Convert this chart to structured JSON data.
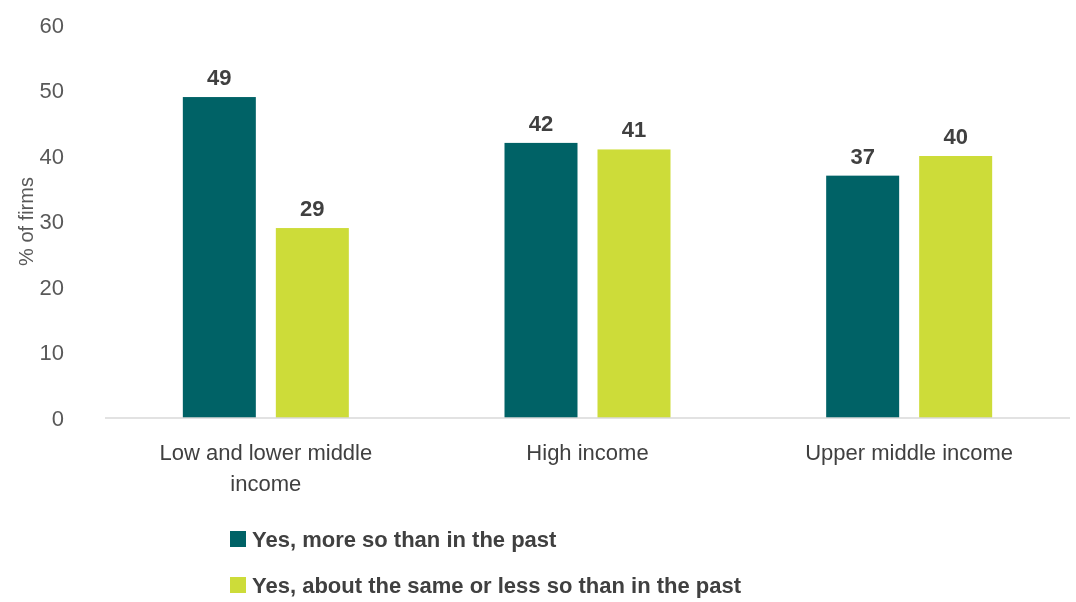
{
  "chart_data": {
    "type": "bar",
    "ylabel": "% of firms",
    "categories": [
      "Low and lower middle income",
      "High income",
      "Upper middle income"
    ],
    "series": [
      {
        "name": "Yes, more so than in the past",
        "color": "#006266",
        "values": [
          49,
          42,
          37
        ]
      },
      {
        "name": "Yes, about the same or less so than in the past",
        "color": "#cddc39",
        "values": [
          29,
          41,
          40
        ]
      }
    ],
    "ylim": [
      0,
      60
    ],
    "yticks": [
      0,
      10,
      20,
      30,
      40,
      50,
      60
    ],
    "grid": false,
    "legend": "bottom",
    "data_labels": true
  }
}
